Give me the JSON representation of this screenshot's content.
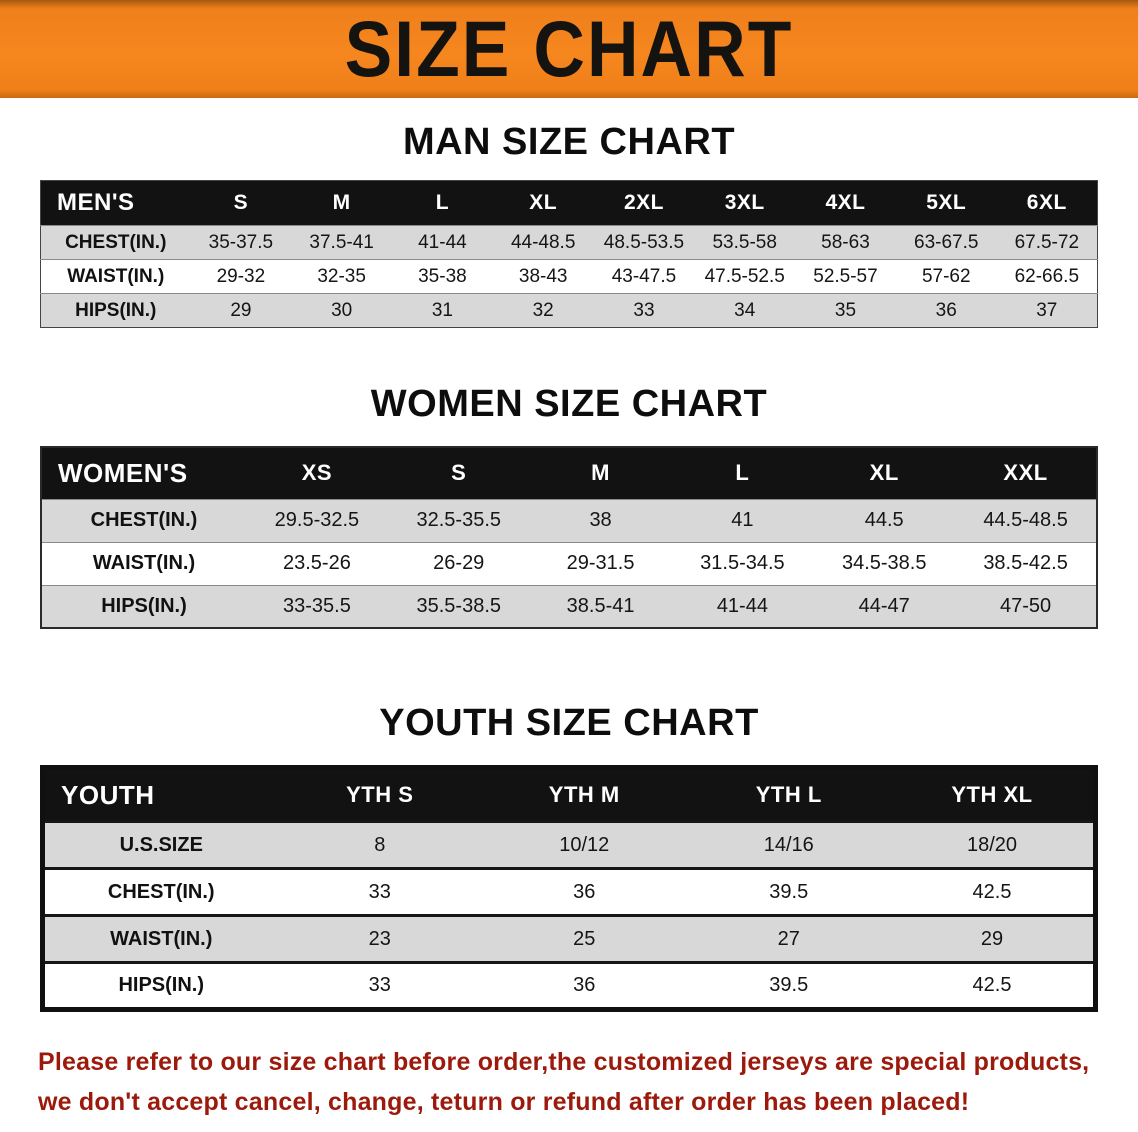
{
  "banner": {
    "title": "SIZE CHART"
  },
  "colors": {
    "banner_bg": "#F6871F",
    "table_header_bg": "#121212",
    "row_shade": "#D8D8D8",
    "notice_text": "#9C1A0C"
  },
  "men": {
    "heading": "MAN SIZE CHART",
    "columns": [
      "MEN'S",
      "S",
      "M",
      "L",
      "XL",
      "2XL",
      "3XL",
      "4XL",
      "5XL",
      "6XL"
    ],
    "rows": [
      [
        "CHEST(IN.)",
        "35-37.5",
        "37.5-41",
        "41-44",
        "44-48.5",
        "48.5-53.5",
        "53.5-58",
        "58-63",
        "63-67.5",
        "67.5-72"
      ],
      [
        "WAIST(IN.)",
        "29-32",
        "32-35",
        "35-38",
        "38-43",
        "43-47.5",
        "47.5-52.5",
        "52.5-57",
        "57-62",
        "62-66.5"
      ],
      [
        "HIPS(IN.)",
        "29",
        "30",
        "31",
        "32",
        "33",
        "34",
        "35",
        "36",
        "37"
      ]
    ]
  },
  "women": {
    "heading": "WOMEN SIZE CHART",
    "columns": [
      "WOMEN'S",
      "XS",
      "S",
      "M",
      "L",
      "XL",
      "XXL"
    ],
    "rows": [
      [
        "CHEST(IN.)",
        "29.5-32.5",
        "32.5-35.5",
        "38",
        "41",
        "44.5",
        "44.5-48.5"
      ],
      [
        "WAIST(IN.)",
        "23.5-26",
        "26-29",
        "29-31.5",
        "31.5-34.5",
        "34.5-38.5",
        "38.5-42.5"
      ],
      [
        "HIPS(IN.)",
        "33-35.5",
        "35.5-38.5",
        "38.5-41",
        "41-44",
        "44-47",
        "47-50"
      ]
    ]
  },
  "youth": {
    "heading": "YOUTH SIZE CHART",
    "columns": [
      "YOUTH",
      "YTH S",
      "YTH M",
      "YTH L",
      "YTH XL"
    ],
    "rows": [
      [
        "U.S.SIZE",
        "8",
        "10/12",
        "14/16",
        "18/20"
      ],
      [
        "CHEST(IN.)",
        "33",
        "36",
        "39.5",
        "42.5"
      ],
      [
        "WAIST(IN.)",
        "23",
        "25",
        "27",
        "29"
      ],
      [
        "HIPS(IN.)",
        "33",
        "36",
        "39.5",
        "42.5"
      ]
    ]
  },
  "notice": {
    "line1": "Please refer to our size chart before order,the customized jerseys are special products,",
    "line2": "we don't accept cancel, change, teturn or refund after order has been placed!"
  }
}
